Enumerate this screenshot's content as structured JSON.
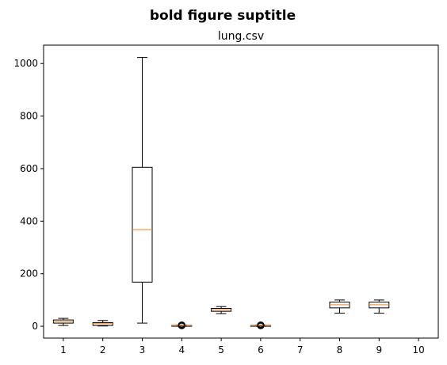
{
  "suptitle": "bold figure suptitle",
  "colors": {
    "box": "#000000",
    "median": "#ff7f0e",
    "background": "#ffffff"
  },
  "chart_data": {
    "type": "box",
    "title": "lung.csv",
    "xlabel": "",
    "ylabel": "",
    "ylim": [
      -45,
      1070
    ],
    "xlim": [
      0.5,
      10.5
    ],
    "grid": false,
    "yticks": [
      0,
      200,
      400,
      600,
      800,
      1000
    ],
    "categories": [
      "1",
      "2",
      "3",
      "4",
      "5",
      "6",
      "7",
      "8",
      "9",
      "10"
    ],
    "boxes": [
      {
        "label": "1",
        "whislo": 3,
        "q1": 12,
        "med": 18,
        "q3": 24,
        "whishi": 30,
        "fliers": []
      },
      {
        "label": "2",
        "whislo": 1,
        "q1": 3,
        "med": 10,
        "q3": 14,
        "whishi": 22,
        "fliers": []
      },
      {
        "label": "3",
        "whislo": 12,
        "q1": 168,
        "med": 368,
        "q3": 605,
        "whishi": 1023,
        "fliers": []
      },
      {
        "label": "4",
        "whislo": 0,
        "q1": 1,
        "med": 2,
        "q3": 3,
        "whishi": 4,
        "fliers": [
          1,
          2,
          3,
          4,
          5,
          6
        ]
      },
      {
        "label": "5",
        "whislo": 48,
        "q1": 57,
        "med": 63,
        "q3": 68,
        "whishi": 75,
        "fliers": []
      },
      {
        "label": "6",
        "whislo": 0,
        "q1": 1,
        "med": 2,
        "q3": 3,
        "whishi": 4,
        "fliers": [
          1,
          2,
          3,
          4,
          5,
          6
        ]
      },
      {
        "label": "7",
        "empty": true
      },
      {
        "label": "8",
        "whislo": 50,
        "q1": 70,
        "med": 82,
        "q3": 92,
        "whishi": 100,
        "fliers": []
      },
      {
        "label": "9",
        "whislo": 50,
        "q1": 70,
        "med": 82,
        "q3": 92,
        "whishi": 100,
        "fliers": []
      },
      {
        "label": "10",
        "empty": true
      }
    ]
  }
}
